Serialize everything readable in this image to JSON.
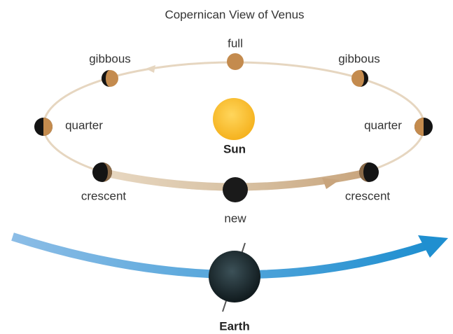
{
  "title": "Copernican View of Venus",
  "phases": {
    "full": "full",
    "gibbous_left": "gibbous",
    "gibbous_right": "gibbous",
    "quarter_left": "quarter",
    "quarter_right": "quarter",
    "crescent_left": "crescent",
    "crescent_right": "crescent",
    "new": "new"
  },
  "sun": "Sun",
  "earth": "Earth"
}
